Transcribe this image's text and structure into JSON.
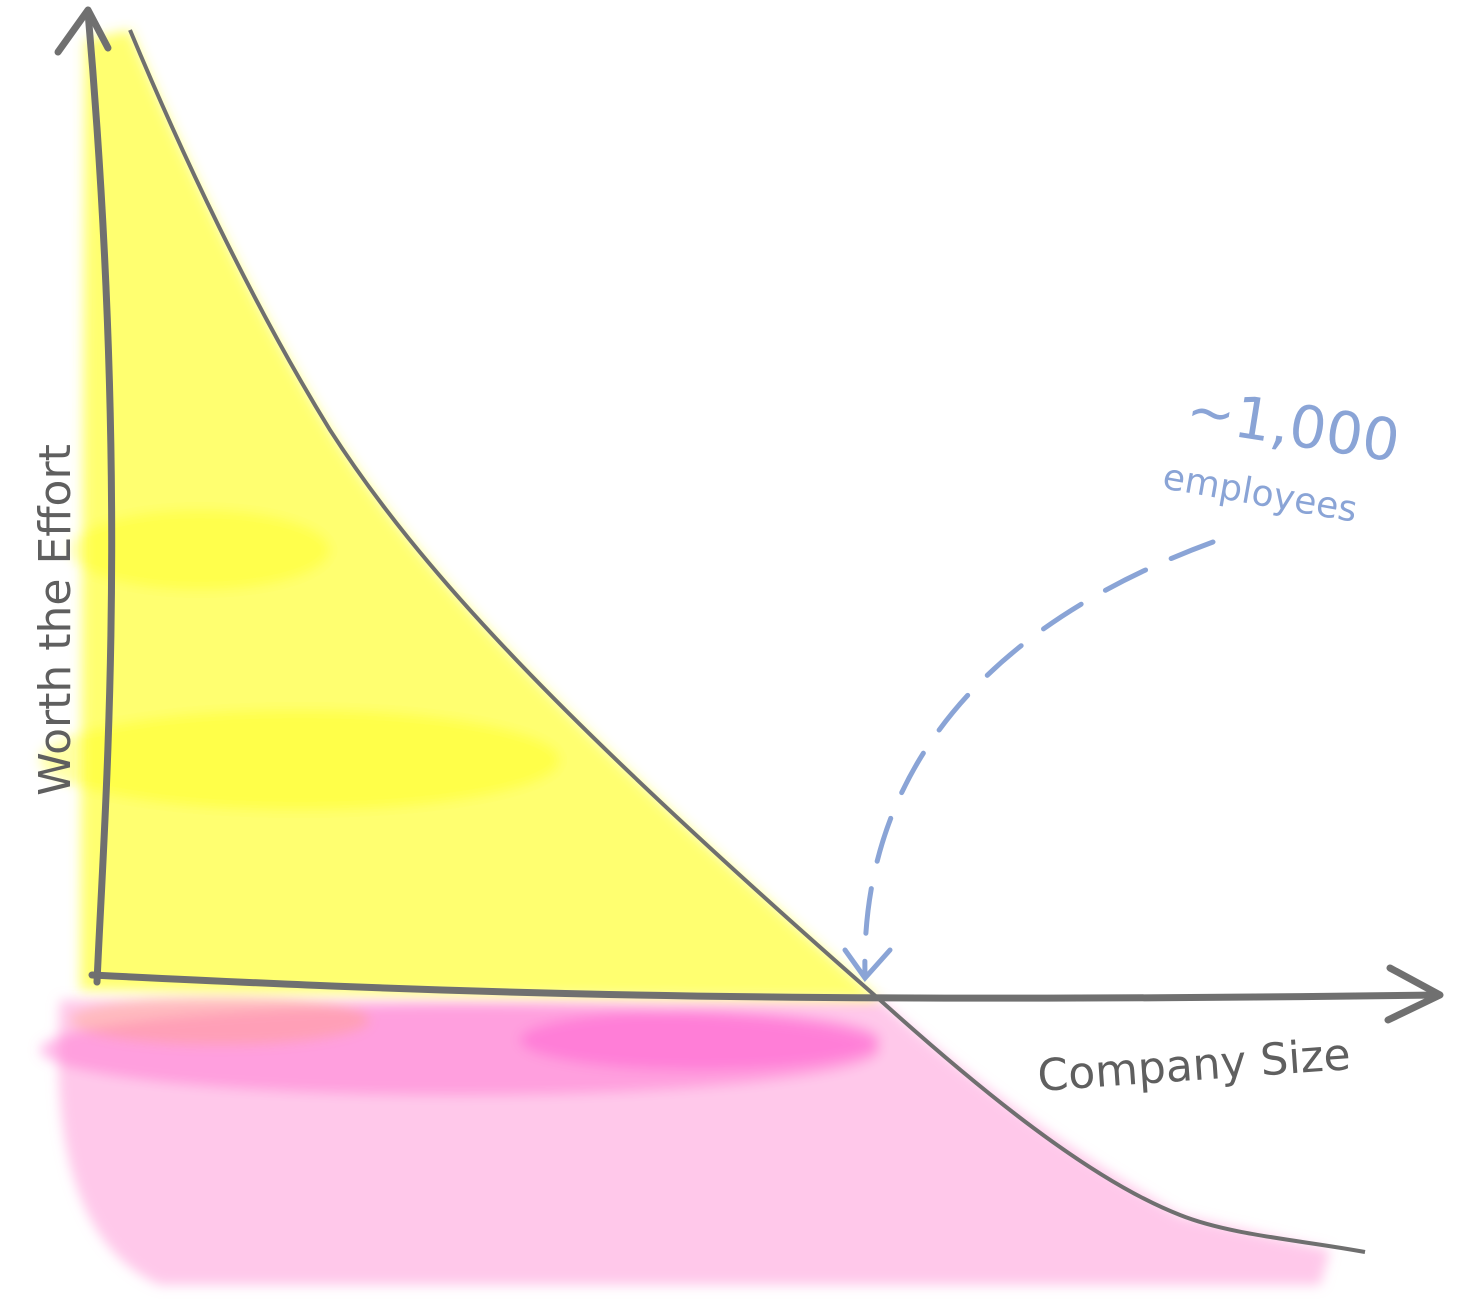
{
  "axes": {
    "y_label": "Worth the Effort",
    "x_label": "Company Size"
  },
  "annotation": {
    "value": "~1,000",
    "unit": "employees"
  }
}
